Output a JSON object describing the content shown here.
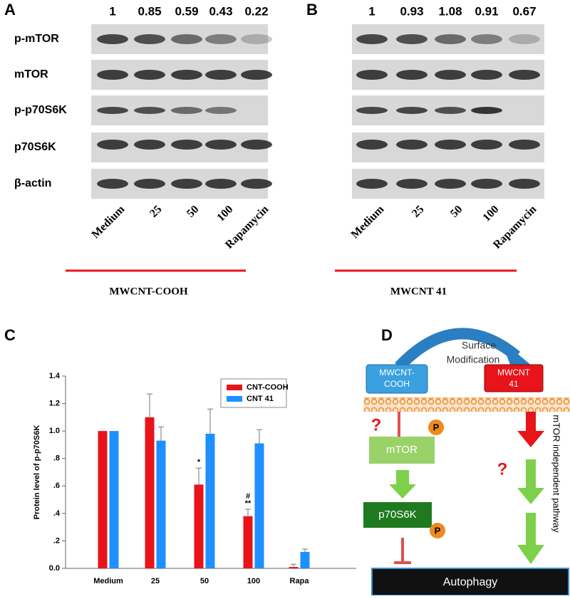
{
  "panel_a": {
    "label": "A",
    "ratios": [
      1,
      0.85,
      0.59,
      0.43,
      0.22
    ],
    "rows": [
      "p-mTOR",
      "mTOR",
      "p-p70S6K",
      "p70S6K",
      "β-actin"
    ],
    "lanes": [
      "Medium",
      "25",
      "50",
      "100",
      "Rapamycin"
    ],
    "group": "MWCNT-COOH"
  },
  "panel_b": {
    "label": "B",
    "ratios": [
      1,
      0.93,
      1.08,
      0.91,
      0.67
    ],
    "lanes": [
      "Medium",
      "25",
      "50",
      "100",
      "Rapamycin"
    ],
    "group": "MWCNT 41"
  },
  "chart_data": {
    "type": "bar",
    "panel_label": "C",
    "y_label": "Protein level of p-p70S6K",
    "categories": [
      "Medium",
      "25",
      "50",
      "100",
      "Rapa"
    ],
    "series": [
      {
        "name": "CNT-COOH",
        "color": "#e8141a",
        "values": [
          1,
          1.1,
          0.61,
          0.38,
          0.01
        ],
        "errors": [
          0,
          0.17,
          0.12,
          0.05,
          0.02
        ]
      },
      {
        "name": "CNT 41",
        "color": "#1e90ff",
        "values": [
          1,
          0.93,
          0.98,
          0.91,
          0.12
        ],
        "errors": [
          0,
          0.1,
          0.18,
          0.1,
          0.02
        ]
      }
    ],
    "ylim": [
      0,
      1.4
    ],
    "yticks": [
      {
        "value": 0,
        "label": "0.0"
      },
      {
        "value": 0.2,
        "label": ".2"
      },
      {
        "value": 0.4,
        "label": ".4"
      },
      {
        "value": 0.6,
        "label": ".6"
      },
      {
        "value": 0.8,
        "label": ".8"
      },
      {
        "value": 1,
        "label": "1.0"
      },
      {
        "value": 1.2,
        "label": "1.2"
      },
      {
        "value": 1.4,
        "label": "1.4"
      }
    ],
    "annotations": [
      {
        "text": "*",
        "category": "50",
        "series": "CNT-COOH"
      },
      {
        "text": "**",
        "category": "100",
        "series": "CNT-COOH"
      },
      {
        "text": "#",
        "category": "100",
        "series": "CNT-COOH"
      }
    ]
  },
  "panel_d": {
    "label": "D",
    "arrow_label": [
      "Surface",
      "Modification"
    ],
    "left_box": [
      "MWCNT-",
      "COOH"
    ],
    "right_box": [
      "MWCNT",
      "41"
    ],
    "mtor": "mTOR",
    "p70": "p70S6K",
    "phospho": "P",
    "unknown": "?",
    "pathway": "mTOR independent pathway",
    "outcome": "Autophagy"
  }
}
